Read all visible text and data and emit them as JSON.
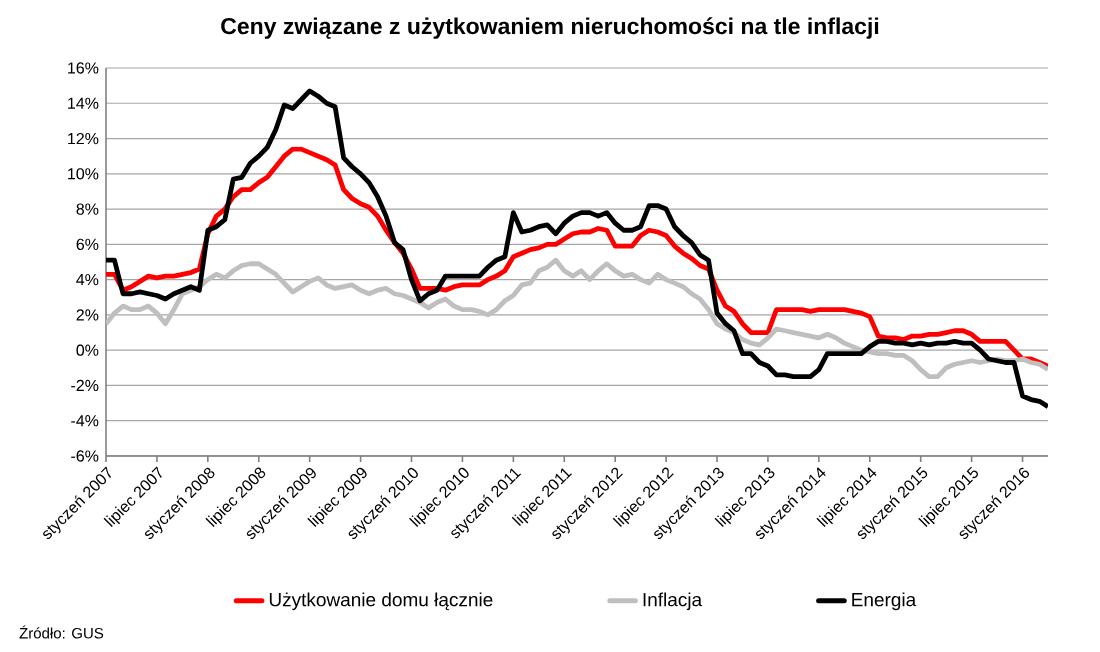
{
  "chart_data": {
    "type": "line",
    "title": "**Ceny związane z użytkowaniem nieruchomości na tle inflacji**",
    "categories": [
      "styczeń 2007",
      null,
      null,
      null,
      null,
      null,
      "lipiec 2007",
      null,
      null,
      null,
      null,
      null,
      "styczeń 2008",
      null,
      null,
      null,
      null,
      null,
      "lipiec 2008",
      null,
      null,
      null,
      null,
      null,
      "styczeń 2009",
      null,
      null,
      null,
      null,
      null,
      "lipiec 2009",
      null,
      null,
      null,
      null,
      null,
      "styczeń 2010",
      null,
      null,
      null,
      null,
      null,
      "lipiec 2010",
      null,
      null,
      null,
      null,
      null,
      "styczeń 2011",
      null,
      null,
      null,
      null,
      null,
      "lipiec 2011",
      null,
      null,
      null,
      null,
      null,
      "styczeń 2012",
      null,
      null,
      null,
      null,
      null,
      "lipiec 2012",
      null,
      null,
      null,
      null,
      null,
      "styczeń 2013",
      null,
      null,
      null,
      null,
      null,
      "lipiec 2013",
      null,
      null,
      null,
      null,
      null,
      "styczeń 2014",
      null,
      null,
      null,
      null,
      null,
      "lipiec 2014",
      null,
      null,
      null,
      null,
      null,
      "styczeń 2015",
      null,
      null,
      null,
      null,
      null,
      "lipiec 2015",
      null,
      null,
      null,
      null,
      null,
      "styczeń 2016",
      null,
      null,
      null
    ],
    "series": [
      {
        "name": "Użytkowanie domu łącznie",
        "color": "#ff0000",
        "values": [
          4.3,
          4.3,
          3.4,
          3.6,
          3.9,
          4.2,
          4.1,
          4.2,
          4.2,
          4.3,
          4.4,
          4.6,
          6.6,
          7.6,
          8.0,
          8.7,
          9.1,
          9.1,
          9.5,
          9.8,
          10.4,
          11.0,
          11.4,
          11.4,
          11.2,
          11.0,
          10.8,
          10.5,
          9.1,
          8.6,
          8.3,
          8.1,
          7.6,
          6.8,
          6.1,
          5.5,
          4.6,
          3.5,
          3.5,
          3.5,
          3.4,
          3.6,
          3.7,
          3.7,
          3.7,
          4.0,
          4.2,
          4.5,
          5.3,
          5.5,
          5.7,
          5.8,
          6.0,
          6.0,
          6.3,
          6.6,
          6.7,
          6.7,
          6.9,
          6.8,
          5.9,
          5.9,
          5.9,
          6.5,
          6.8,
          6.7,
          6.5,
          5.9,
          5.5,
          5.2,
          4.8,
          4.6,
          3.4,
          2.5,
          2.2,
          1.5,
          1.0,
          1.0,
          1.0,
          2.3,
          2.3,
          2.3,
          2.3,
          2.2,
          2.3,
          2.3,
          2.3,
          2.3,
          2.2,
          2.1,
          1.9,
          0.8,
          0.7,
          0.7,
          0.6,
          0.8,
          0.8,
          0.9,
          0.9,
          1.0,
          1.1,
          1.1,
          0.9,
          0.5,
          0.5,
          0.5,
          0.5,
          0.0,
          -0.5,
          -0.5,
          -0.7,
          -0.9
        ]
      },
      {
        "name": "Inflacja",
        "color": "#bfbfbf",
        "values": [
          1.5,
          2.1,
          2.5,
          2.3,
          2.3,
          2.5,
          2.1,
          1.5,
          2.3,
          3.2,
          3.4,
          3.6,
          4.0,
          4.3,
          4.1,
          4.5,
          4.8,
          4.9,
          4.9,
          4.6,
          4.3,
          3.8,
          3.3,
          3.6,
          3.9,
          4.1,
          3.7,
          3.5,
          3.6,
          3.7,
          3.4,
          3.2,
          3.4,
          3.5,
          3.2,
          3.1,
          2.9,
          2.7,
          2.4,
          2.7,
          2.9,
          2.5,
          2.3,
          2.3,
          2.2,
          2.0,
          2.3,
          2.8,
          3.1,
          3.7,
          3.8,
          4.5,
          4.7,
          5.1,
          4.5,
          4.2,
          4.5,
          4.0,
          4.5,
          4.9,
          4.5,
          4.2,
          4.3,
          4.0,
          3.8,
          4.3,
          4.0,
          3.8,
          3.6,
          3.2,
          2.9,
          2.3,
          1.5,
          1.2,
          1.0,
          0.6,
          0.4,
          0.3,
          0.7,
          1.2,
          1.1,
          1.0,
          0.9,
          0.8,
          0.7,
          0.9,
          0.7,
          0.4,
          0.2,
          0.0,
          -0.1,
          -0.2,
          -0.2,
          -0.3,
          -0.3,
          -0.6,
          -1.1,
          -1.5,
          -1.5,
          -1.0,
          -0.8,
          -0.7,
          -0.6,
          -0.7,
          -0.6,
          -0.5,
          -0.6,
          -0.6,
          -0.5,
          -0.7,
          -0.8,
          -1.1
        ]
      },
      {
        "name": "Energia",
        "color": "#000000",
        "values": [
          5.1,
          5.1,
          3.2,
          3.2,
          3.3,
          3.2,
          3.1,
          2.9,
          3.2,
          3.4,
          3.6,
          3.4,
          6.8,
          7.0,
          7.4,
          9.7,
          9.8,
          10.6,
          11.0,
          11.5,
          12.5,
          13.9,
          13.7,
          14.2,
          14.7,
          14.4,
          14.0,
          13.8,
          10.9,
          10.4,
          10.0,
          9.5,
          8.7,
          7.6,
          6.1,
          5.7,
          4.0,
          2.8,
          3.2,
          3.4,
          4.2,
          4.2,
          4.2,
          4.2,
          4.2,
          4.7,
          5.1,
          5.3,
          7.8,
          6.7,
          6.8,
          7.0,
          7.1,
          6.6,
          7.2,
          7.6,
          7.8,
          7.8,
          7.6,
          7.8,
          7.2,
          6.8,
          6.8,
          7.0,
          8.2,
          8.2,
          8.0,
          7.0,
          6.5,
          6.1,
          5.4,
          5.1,
          2.1,
          1.5,
          1.1,
          -0.2,
          -0.2,
          -0.7,
          -0.9,
          -1.4,
          -1.4,
          -1.5,
          -1.5,
          -1.5,
          -1.1,
          -0.2,
          -0.2,
          -0.2,
          -0.2,
          -0.2,
          0.2,
          0.5,
          0.5,
          0.4,
          0.4,
          0.3,
          0.4,
          0.3,
          0.4,
          0.4,
          0.5,
          0.4,
          0.4,
          0.0,
          -0.5,
          -0.6,
          -0.7,
          -0.7,
          -2.6,
          -2.8,
          -2.9,
          -3.2
        ]
      }
    ],
    "ylim": [
      -6,
      16
    ],
    "yticks": [
      {
        "value": -6,
        "label": "-6%"
      },
      {
        "value": -4,
        "label": "-4%"
      },
      {
        "value": -2,
        "label": "-2%"
      },
      {
        "value": 0,
        "label": "0%"
      },
      {
        "value": 2,
        "label": "2%"
      },
      {
        "value": 4,
        "label": "4%"
      },
      {
        "value": 6,
        "label": "6%"
      },
      {
        "value": 8,
        "label": "8%"
      },
      {
        "value": 10,
        "label": "10%"
      },
      {
        "value": 12,
        "label": "12%"
      },
      {
        "value": 14,
        "label": "14%"
      },
      {
        "value": 16,
        "label": "16%"
      }
    ],
    "grid": "y",
    "legend": "bottom",
    "annotations": [
      "Źródło: GUS"
    ]
  }
}
